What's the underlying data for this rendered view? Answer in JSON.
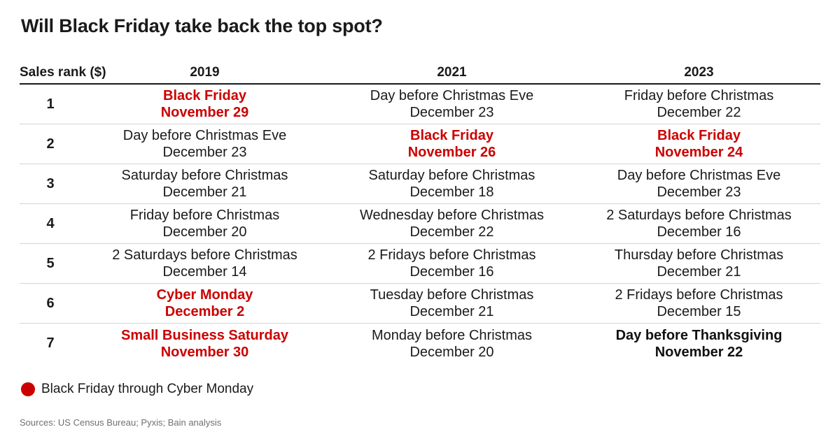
{
  "title": "Will Black Friday take back the top spot?",
  "colors": {
    "highlight": "#cc0000",
    "text": "#1a1a1a",
    "rule": "#d4d4d4",
    "source": "#707070"
  },
  "legend": {
    "marker_color": "#cc0000",
    "label": "Black Friday through Cyber Monday"
  },
  "source": "Sources: US Census Bureau; Pyxis; Bain analysis",
  "chart_data": {
    "type": "table",
    "title": "Will Black Friday take back the top spot?",
    "row_header": "Sales rank ($)",
    "columns": [
      "2019",
      "2021",
      "2023"
    ],
    "rows": [
      {
        "rank": "1",
        "cells": [
          {
            "name": "Black Friday",
            "date": "November 29",
            "style": "highlight"
          },
          {
            "name": "Day before Christmas Eve",
            "date": "December 23",
            "style": "normal"
          },
          {
            "name": "Friday before Christmas",
            "date": "December 22",
            "style": "normal"
          }
        ]
      },
      {
        "rank": "2",
        "cells": [
          {
            "name": "Day before Christmas Eve",
            "date": "December 23",
            "style": "normal"
          },
          {
            "name": "Black Friday",
            "date": "November 26",
            "style": "highlight"
          },
          {
            "name": "Black Friday",
            "date": "November 24",
            "style": "highlight"
          }
        ]
      },
      {
        "rank": "3",
        "cells": [
          {
            "name": "Saturday before Christmas",
            "date": "December 21",
            "style": "normal"
          },
          {
            "name": "Saturday before Christmas",
            "date": "December 18",
            "style": "normal"
          },
          {
            "name": "Day before Christmas Eve",
            "date": "December 23",
            "style": "normal"
          }
        ]
      },
      {
        "rank": "4",
        "cells": [
          {
            "name": "Friday before Christmas",
            "date": "December 20",
            "style": "normal"
          },
          {
            "name": "Wednesday before Christmas",
            "date": "December 22",
            "style": "normal"
          },
          {
            "name": "2 Saturdays before Christmas",
            "date": "December 16",
            "style": "normal"
          }
        ]
      },
      {
        "rank": "5",
        "cells": [
          {
            "name": "2 Saturdays before Christmas",
            "date": "December 14",
            "style": "normal"
          },
          {
            "name": "2 Fridays before Christmas",
            "date": "December 16",
            "style": "normal"
          },
          {
            "name": "Thursday before Christmas",
            "date": "December 21",
            "style": "normal"
          }
        ]
      },
      {
        "rank": "6",
        "cells": [
          {
            "name": "Cyber Monday",
            "date": "December 2",
            "style": "highlight"
          },
          {
            "name": "Tuesday before Christmas",
            "date": "December 21",
            "style": "normal"
          },
          {
            "name": "2 Fridays before Christmas",
            "date": "December 15",
            "style": "normal"
          }
        ]
      },
      {
        "rank": "7",
        "cells": [
          {
            "name": "Small Business Saturday",
            "date": "November 30",
            "style": "highlight"
          },
          {
            "name": "Monday before Christmas",
            "date": "December 20",
            "style": "normal"
          },
          {
            "name": "Day before Thanksgiving",
            "date": "November 22",
            "style": "bold"
          }
        ]
      }
    ]
  }
}
